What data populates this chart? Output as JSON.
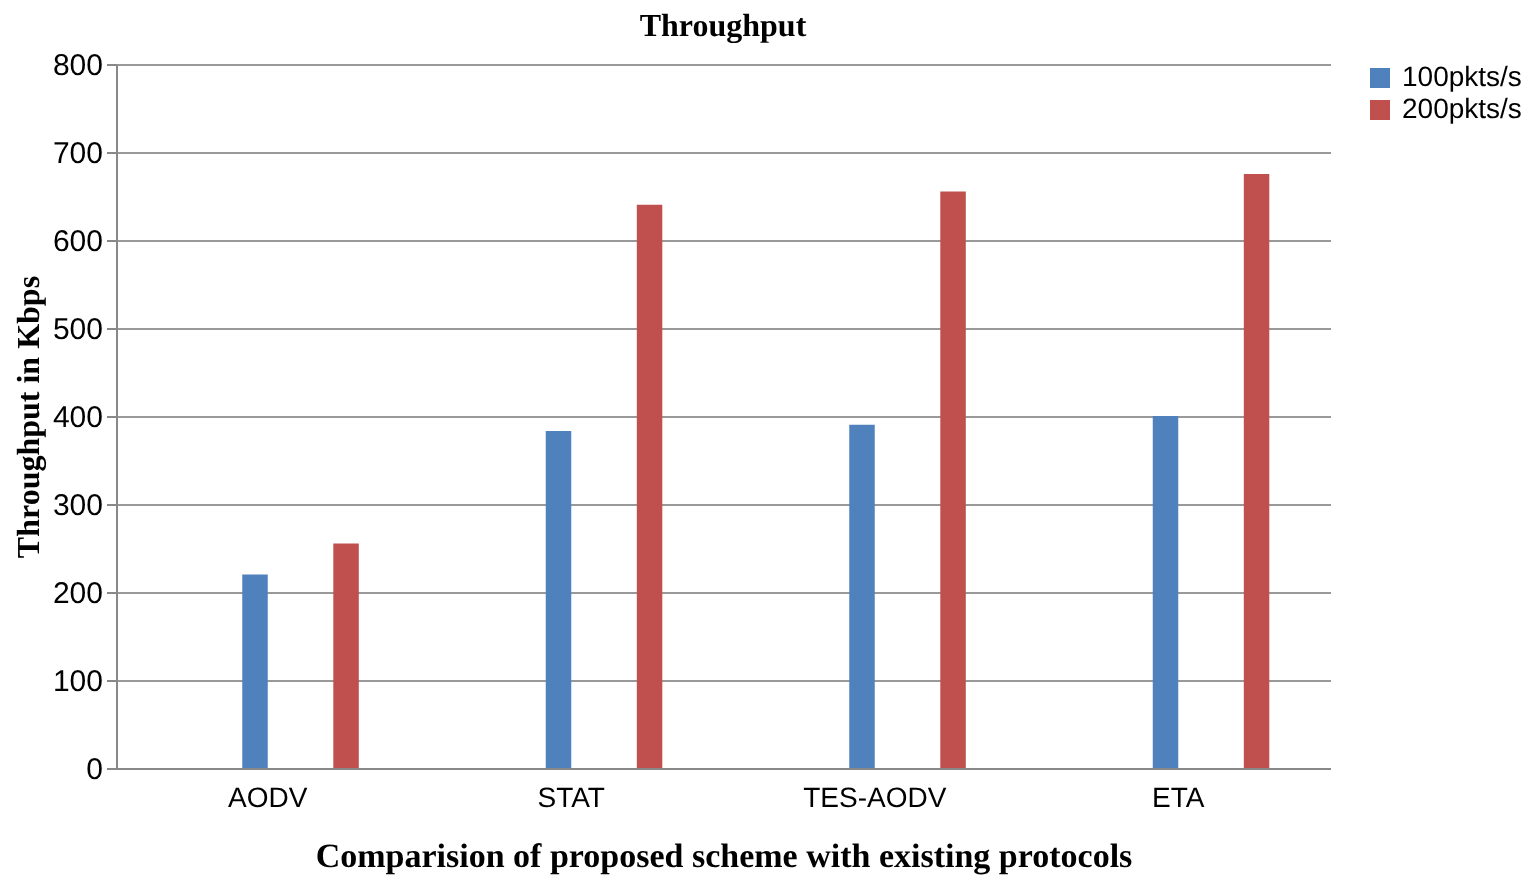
{
  "chart_data": {
    "type": "bar",
    "title": "Throughput",
    "xlabel": "Comparision of proposed scheme with existing protocols",
    "ylabel": "Throughput in Kbps",
    "categories": [
      "AODV",
      "STAT",
      "TES-AODV",
      "ETA"
    ],
    "series": [
      {
        "name": "100pkts/s",
        "color": "#4f81bd",
        "values": [
          220,
          383,
          390,
          400
        ]
      },
      {
        "name": "200pkts/s",
        "color": "#c0504d",
        "values": [
          255,
          640,
          655,
          675
        ]
      }
    ],
    "ylim": [
      0,
      800
    ],
    "yticks": [
      0,
      100,
      200,
      300,
      400,
      500,
      600,
      700,
      800
    ],
    "grid": "y",
    "legend": "right"
  }
}
